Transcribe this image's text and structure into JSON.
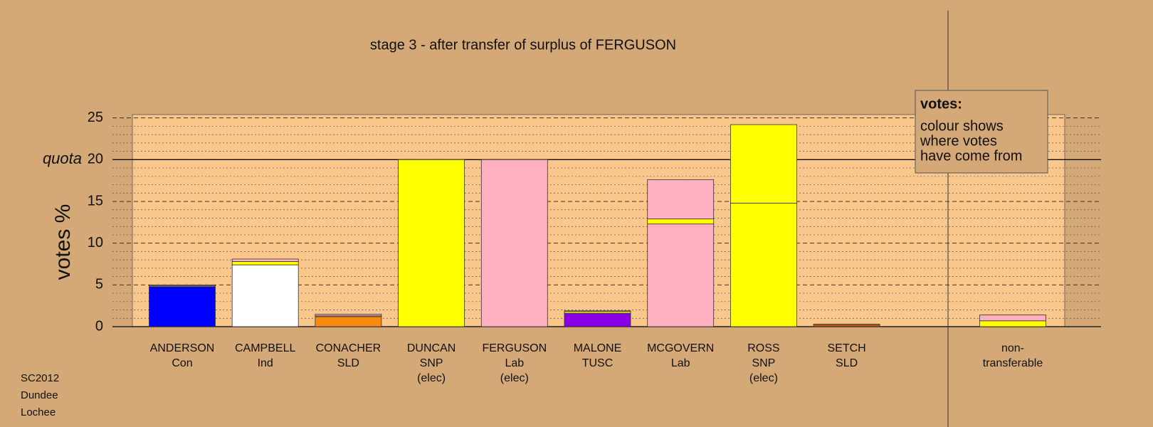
{
  "chart_data": {
    "type": "stacked-bar",
    "title": "stage 3 - after transfer of surplus of FERGUSON",
    "y_label": "votes %",
    "quota_label": "quota",
    "quota": 20,
    "categories": [
      [
        "ANDERSON",
        "Con"
      ],
      [
        "CAMPBELL",
        "Ind"
      ],
      [
        "CONACHER",
        "SLD"
      ],
      [
        "DUNCAN",
        "SNP",
        "(elec)"
      ],
      [
        "FERGUSON",
        "Lab",
        "(elec)"
      ],
      [
        "MALONE",
        "TUSC"
      ],
      [
        "MCGOVERN",
        "Lab"
      ],
      [
        "ROSS",
        "SNP",
        "(elec)"
      ],
      [
        "SETCH",
        "SLD"
      ],
      [
        "non-",
        "transferable"
      ]
    ],
    "series": [
      {
        "colors": [
          "#0000ff",
          "#ffffff",
          "#fa8a10",
          "#ffff00",
          "#ffb0c0",
          "#8a00e6",
          "#ffb0c0",
          "#ffff00",
          "#b8561a",
          "#ffffff"
        ],
        "values": [
          4.8,
          7.4,
          1.2,
          20.0,
          20.0,
          1.6,
          12.3,
          14.8,
          0.3,
          0
        ]
      },
      {
        "color": "#ffff00",
        "values": [
          0.1,
          0.4,
          0.1,
          0,
          0,
          0.2,
          0.6,
          9.4,
          0,
          0.7
        ]
      },
      {
        "color": "#ffb0c0",
        "values": [
          0.1,
          0.3,
          0.2,
          0,
          0,
          0.1,
          4.7,
          0,
          0,
          0.7
        ]
      }
    ],
    "ylim": [
      0,
      25.4
    ],
    "yticks": [
      0,
      5,
      10,
      15,
      20,
      25
    ],
    "minor_yticks": [
      1,
      2,
      3,
      4,
      6,
      7,
      8,
      9,
      11,
      12,
      13,
      14,
      16,
      17,
      18,
      19,
      21,
      22,
      23,
      24
    ],
    "legend": {
      "title": "votes:",
      "lines": [
        "colour shows",
        "where votes",
        "have come from"
      ]
    },
    "notes": [
      "SC2012",
      "Dundee",
      "Lochee"
    ]
  }
}
